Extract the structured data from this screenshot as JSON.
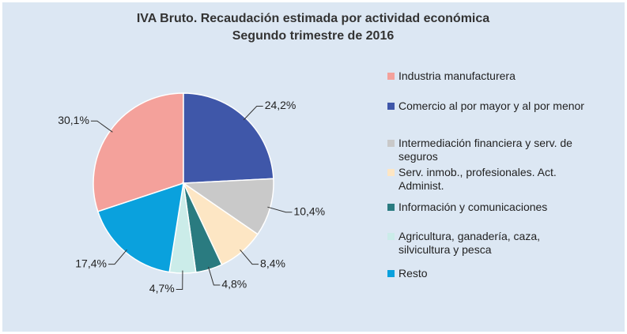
{
  "chart_data": {
    "type": "pie",
    "title": "IVA Bruto. Recaudación estimada por actividad económica",
    "subtitle": "Segundo trimestre de 2016",
    "categories": [
      "Industria manufacturera",
      "Comercio al por mayor y al por menor",
      "Intermediación financiera y serv. de seguros",
      "Serv. inmob., profesionales. Act. Administ.",
      "Información y comunicaciones",
      "Agricultura, ganadería, caza, silvicultura y pesca",
      "Resto"
    ],
    "values": [
      30.1,
      24.2,
      10.4,
      8.4,
      4.8,
      4.7,
      17.4
    ],
    "value_labels": [
      "30,1%",
      "24,2%",
      "10,4%",
      "8,4%",
      "4,8%",
      "4,7%",
      "17,4%"
    ],
    "colors": [
      "#f4a19b",
      "#3f57a9",
      "#c9c9c9",
      "#fde6c4",
      "#2a7b80",
      "#cbece9",
      "#0aa1dd"
    ],
    "legend": "right"
  }
}
